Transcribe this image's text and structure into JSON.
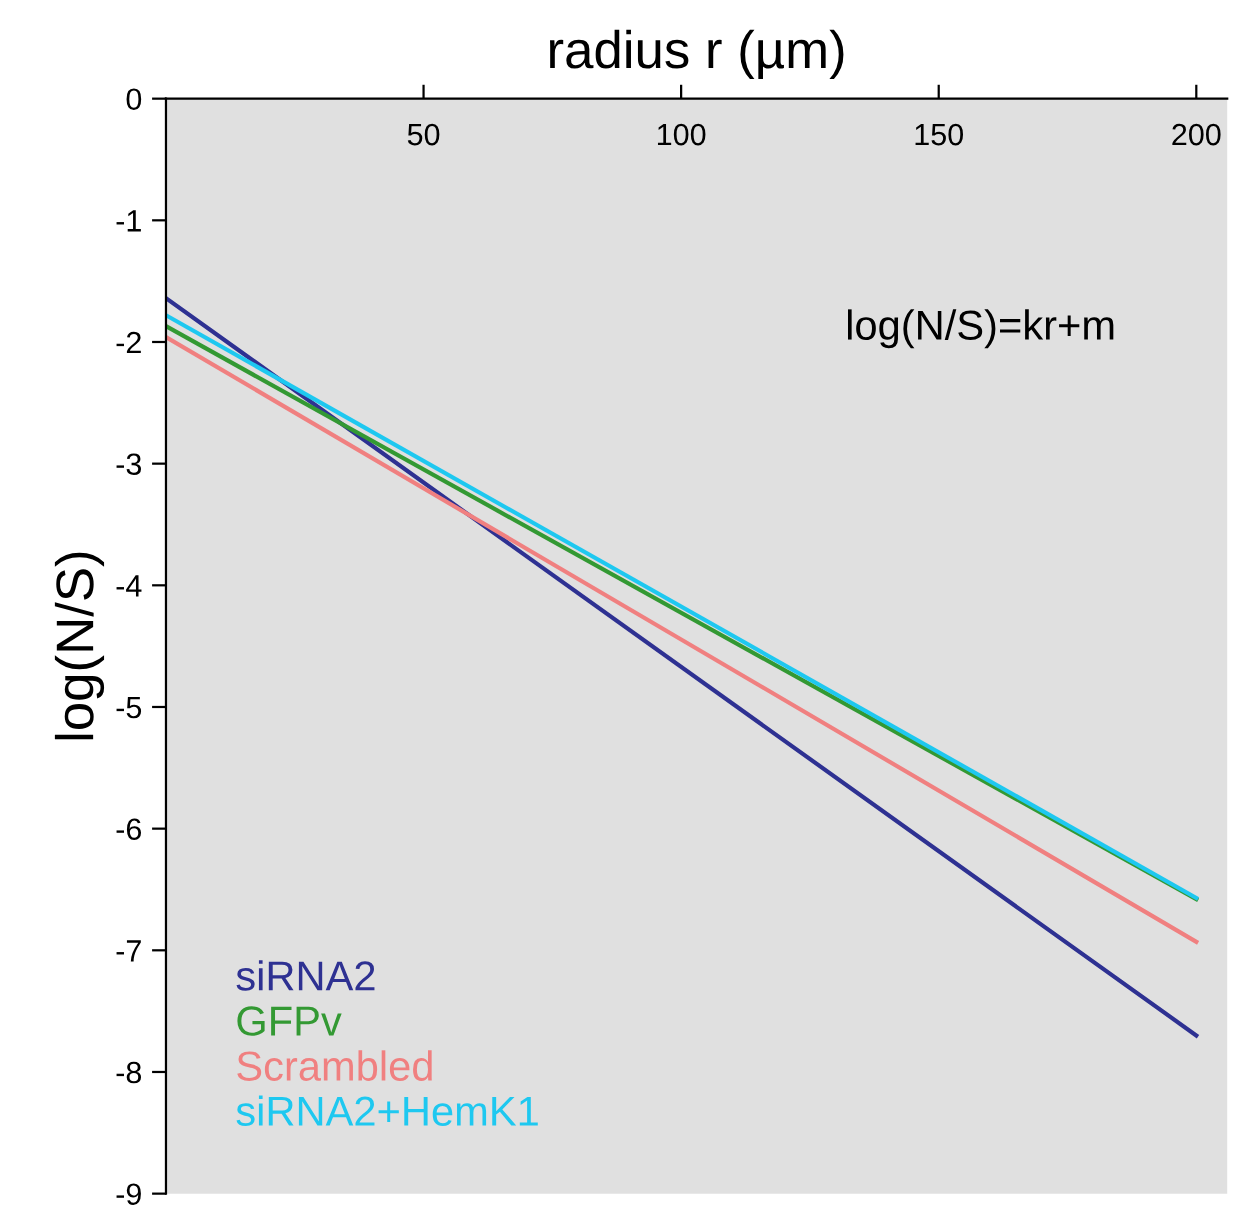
{
  "chart_data": {
    "type": "line",
    "xlabel": "radius r (µm)",
    "ylabel": "log(N/S)",
    "x": [
      0,
      200
    ],
    "series": [
      {
        "name": "siRNA2",
        "color": "#2e3192",
        "values": [
          -1.64,
          -7.7
        ]
      },
      {
        "name": "GFPv",
        "color": "#339933",
        "values": [
          -1.87,
          -6.58
        ]
      },
      {
        "name": "Scrambled",
        "color": "#f08080",
        "values": [
          -1.96,
          -6.93
        ]
      },
      {
        "name": "siRNA2+HemK1",
        "color": "#1ec8f0",
        "values": [
          -1.78,
          -6.57
        ]
      }
    ],
    "xlim": [
      0,
      206
    ],
    "xticks": [
      50,
      100,
      150,
      200
    ],
    "ylim": [
      -9,
      0
    ],
    "yticks": [
      0,
      -1,
      -2,
      -3,
      -4,
      -5,
      -6,
      -7,
      -8,
      -9
    ],
    "annotations": [
      "log(N/S)=kr+m"
    ],
    "legend": "bottom left",
    "grid": false,
    "marker": "none",
    "line_style": "solid"
  }
}
